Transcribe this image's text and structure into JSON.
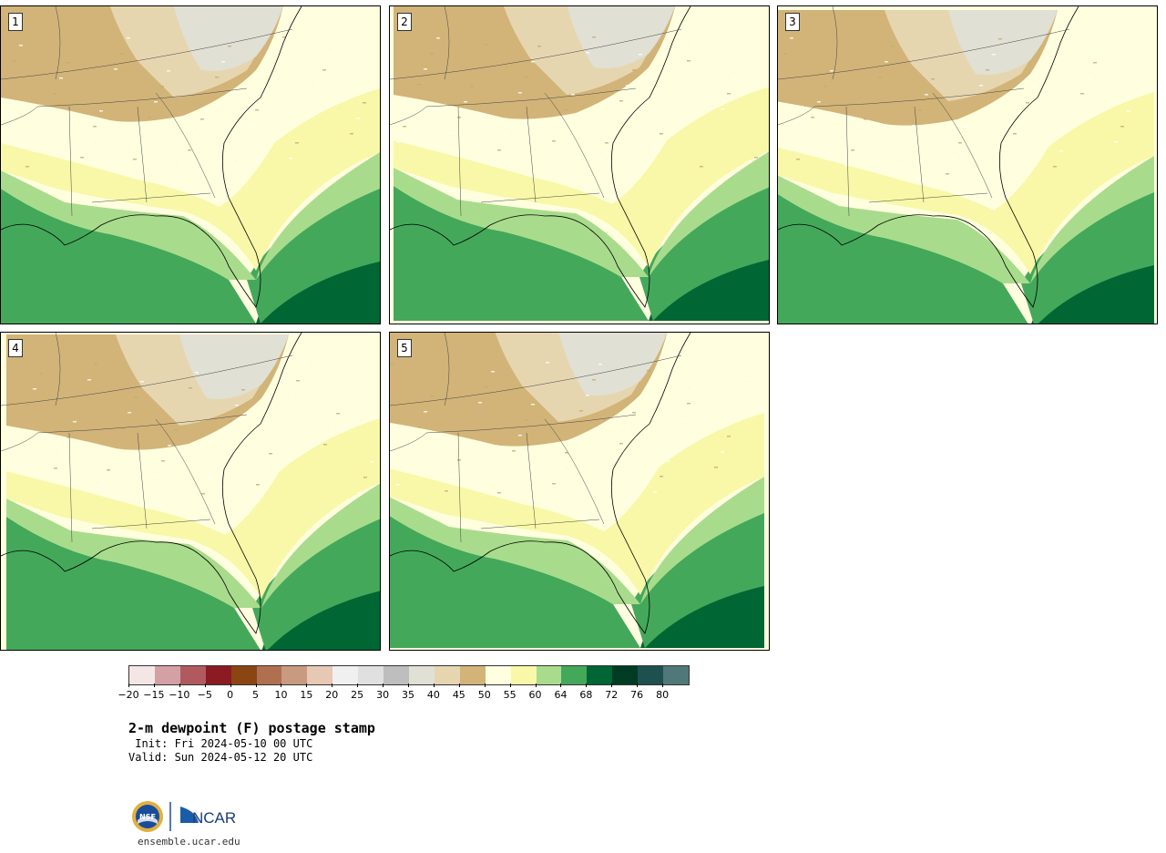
{
  "panels": [
    {
      "label": "1",
      "variant": 1
    },
    {
      "label": "2",
      "variant": 2
    },
    {
      "label": "3",
      "variant": 3
    },
    {
      "label": "4",
      "variant": 4
    },
    {
      "label": "5",
      "variant": 5
    }
  ],
  "colorbar": {
    "colors": [
      "#f5e6e6",
      "#d4a0a4",
      "#b05a60",
      "#8b1a22",
      "#8b4513",
      "#b07050",
      "#c89a80",
      "#e6c8b4",
      "#f0f0f0",
      "#e0e0e0",
      "#bebebe",
      "#e0e0d4",
      "#e6d6b0",
      "#d2b478",
      "#ffffe0",
      "#f8f8a8",
      "#a8dc8c",
      "#44a85a",
      "#006633",
      "#003c23",
      "#1e5050",
      "#507878"
    ],
    "tick_labels": [
      "−20",
      "−15",
      "−10",
      "−5",
      "0",
      "5",
      "10",
      "15",
      "20",
      "25",
      "30",
      "35",
      "40",
      "45",
      "50",
      "55",
      "60",
      "64",
      "68",
      "72",
      "76",
      "80"
    ]
  },
  "title": "2-m dewpoint (F) postage stamp",
  "init_line": " Init: Fri 2024-05-10 00 UTC",
  "valid_line": "Valid: Sun 2024-05-12 20 UTC",
  "website": "ensemble.ucar.edu",
  "logo": {
    "nsf_text": "NSF",
    "ncar_text": "NCAR"
  }
}
